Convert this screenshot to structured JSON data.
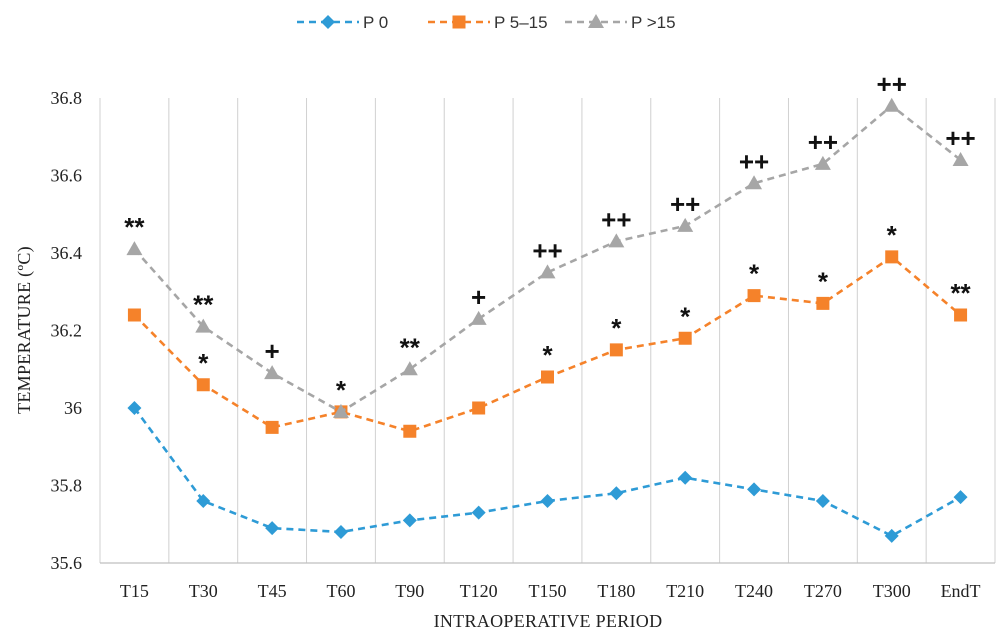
{
  "chart_data": {
    "type": "line",
    "title": "",
    "xlabel": "INTRAOPERATIVE PERIOD",
    "ylabel": "TEMPERATURE (ºC)",
    "ylim": [
      35.6,
      36.8
    ],
    "yticks": [
      "35.6",
      "35.8",
      "36",
      "36.2",
      "36.4",
      "36.6",
      "36.8"
    ],
    "grid": "vertical",
    "legend_position": "top",
    "categories": [
      "T15",
      "T30",
      "T45",
      "T60",
      "T90",
      "T120",
      "T150",
      "T180",
      "T210",
      "T240",
      "T270",
      "T300",
      "EndT"
    ],
    "series": [
      {
        "name": "P 0",
        "color": "#2E9BD6",
        "marker": "diamond",
        "values": [
          36.0,
          35.76,
          35.69,
          35.68,
          35.71,
          35.73,
          35.76,
          35.78,
          35.82,
          35.79,
          35.76,
          35.67,
          35.77
        ],
        "annotations": [
          "",
          "",
          "",
          "",
          "",
          "",
          "",
          "",
          "",
          "",
          "",
          "",
          ""
        ]
      },
      {
        "name": "P 5–15",
        "color": "#F5822A",
        "marker": "square",
        "values": [
          36.24,
          36.06,
          35.95,
          35.99,
          35.94,
          36.0,
          36.08,
          36.15,
          36.18,
          36.29,
          36.27,
          36.39,
          36.24
        ],
        "annotations": [
          "",
          "*",
          "",
          "*",
          "",
          "",
          "*",
          "*",
          "*",
          "*",
          "*",
          "*",
          "**"
        ]
      },
      {
        "name": "P >15",
        "color": "#A6A6A6",
        "marker": "triangle",
        "values": [
          36.41,
          36.21,
          36.09,
          35.99,
          36.1,
          36.23,
          36.35,
          36.43,
          36.47,
          36.58,
          36.63,
          36.78,
          36.64
        ],
        "annotations": [
          "**",
          "**",
          "+",
          "",
          "**",
          "+",
          "++",
          "++",
          "++",
          "++",
          "++",
          "++",
          "++"
        ]
      }
    ]
  }
}
